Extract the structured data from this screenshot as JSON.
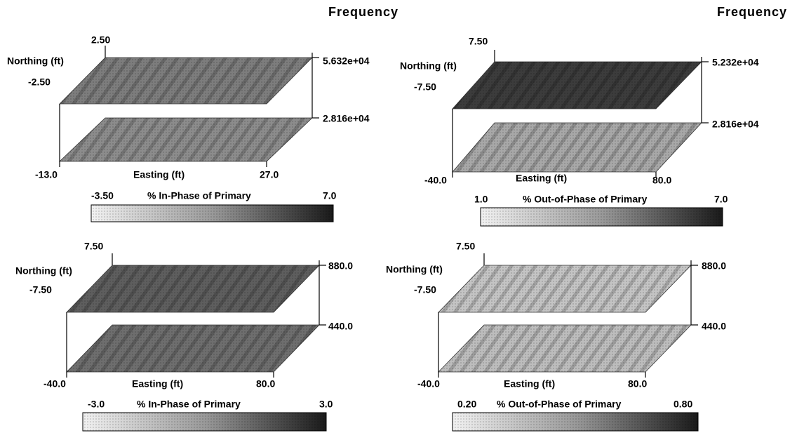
{
  "panels": [
    {
      "title": "Frequency",
      "northing_label": "Northing (ft)",
      "northing_max": "2.50",
      "northing_min": "-2.50",
      "freq_high": "5.632e+04",
      "freq_low": "2.816e+04",
      "easting_min": "-13.0",
      "easting_label": "Easting (ft)",
      "easting_max": "27.0",
      "colorbar_min": "-3.50",
      "colorbar_label": "% In-Phase of Primary",
      "colorbar_max": "7.0"
    },
    {
      "title": "Frequency",
      "northing_label": "Northing (ft)",
      "northing_max": "7.50",
      "northing_min": "-7.50",
      "freq_high": "5.232e+04",
      "freq_low": "2.816e+04",
      "easting_min": "-40.0",
      "easting_label": "Easting (ft)",
      "easting_max": "80.0",
      "colorbar_min": "1.0",
      "colorbar_label": "% Out-of-Phase of Primary",
      "colorbar_max": "7.0"
    },
    {
      "northing_label": "Northing (ft)",
      "northing_max": "7.50",
      "northing_min": "-7.50",
      "freq_high": "880.0",
      "freq_low": "440.0",
      "easting_min": "-40.0",
      "easting_label": "Easting (ft)",
      "easting_max": "80.0",
      "colorbar_min": "-3.0",
      "colorbar_label": "% In-Phase of Primary",
      "colorbar_max": "3.0"
    },
    {
      "northing_label": "Northing (ft)",
      "northing_max": "7.50",
      "northing_min": "-7.50",
      "freq_high": "880.0",
      "freq_low": "440.0",
      "easting_min": "-40.0",
      "easting_label": "Easting (ft)",
      "easting_max": "80.0",
      "colorbar_min": "0.20",
      "colorbar_label": "% Out-of-Phase of Primary",
      "colorbar_max": "0.80"
    }
  ]
}
